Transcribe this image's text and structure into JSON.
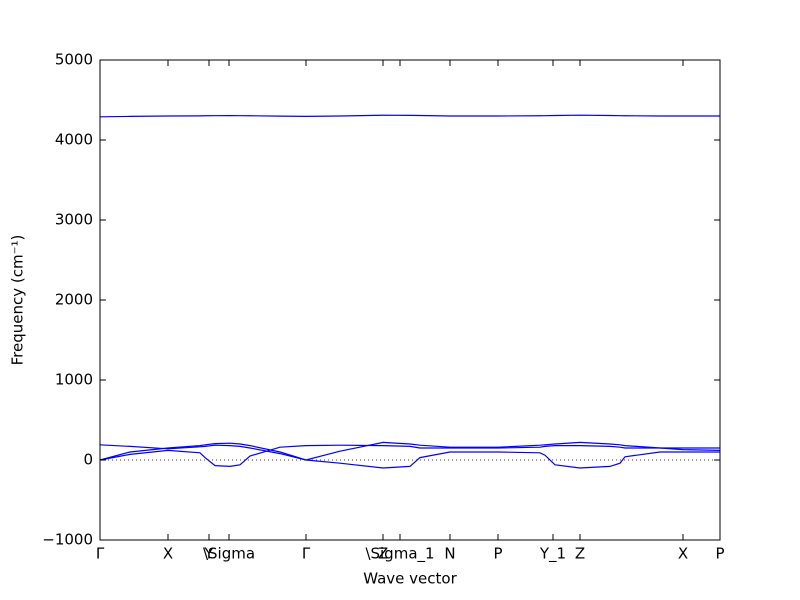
{
  "chart_data": {
    "type": "line",
    "xlabel": "Wave vector",
    "ylabel": "Frequency (cm⁻¹)",
    "x": [
      0,
      30,
      68,
      100,
      105,
      115,
      130,
      140,
      150,
      180,
      206,
      240,
      283,
      310,
      320,
      350,
      398,
      440,
      445,
      455,
      480,
      510,
      520,
      525,
      560,
      583,
      620
    ],
    "series": [
      {
        "color": "#0000ff",
        "values": [
          4290,
          4295,
          4300,
          4302,
          4303,
          4304,
          4305,
          4304,
          4303,
          4298,
          4295,
          4300,
          4310,
          4308,
          4306,
          4300,
          4300,
          4303,
          4304,
          4306,
          4310,
          4306,
          4304,
          4303,
          4300,
          4300,
          4300
        ]
      },
      {
        "color": "#0000ff",
        "values": [
          0,
          70,
          120,
          90,
          30,
          -70,
          -80,
          -60,
          50,
          160,
          180,
          185,
          180,
          170,
          150,
          150,
          150,
          160,
          170,
          180,
          180,
          170,
          160,
          150,
          150,
          150,
          150
        ]
      },
      {
        "color": "#0000ff",
        "values": [
          190,
          170,
          140,
          165,
          170,
          185,
          180,
          170,
          150,
          80,
          0,
          -40,
          -100,
          -80,
          30,
          100,
          100,
          90,
          60,
          -60,
          -100,
          -80,
          -40,
          40,
          100,
          100,
          100
        ]
      },
      {
        "color": "#0000ff",
        "values": [
          0,
          100,
          150,
          180,
          190,
          205,
          210,
          200,
          180,
          100,
          0,
          110,
          220,
          200,
          185,
          160,
          160,
          185,
          190,
          200,
          220,
          200,
          190,
          180,
          150,
          130,
          120
        ]
      }
    ],
    "xlim": [
      0,
      620
    ],
    "xticks": [
      {
        "value": 0,
        "label": "Γ"
      },
      {
        "value": 68,
        "label": "X"
      },
      {
        "value": 109,
        "label": "Y"
      },
      {
        "value": 129,
        "label": "\\Sigma"
      },
      {
        "value": 206,
        "label": "Γ"
      },
      {
        "value": 283,
        "label": "Z"
      },
      {
        "value": 300,
        "label": "\\Sigma_1"
      },
      {
        "value": 350,
        "label": "N"
      },
      {
        "value": 398,
        "label": "P"
      },
      {
        "value": 453,
        "label": "Y_1"
      },
      {
        "value": 480,
        "label": "Z"
      },
      {
        "value": 583,
        "label": "X"
      },
      {
        "value": 620,
        "label": "P"
      }
    ],
    "ylim": [
      -1000,
      5000
    ],
    "yticks": [
      {
        "value": -1000,
        "label": "−1000"
      },
      0,
      1000,
      2000,
      3000,
      4000,
      5000
    ],
    "zero_line": true
  }
}
